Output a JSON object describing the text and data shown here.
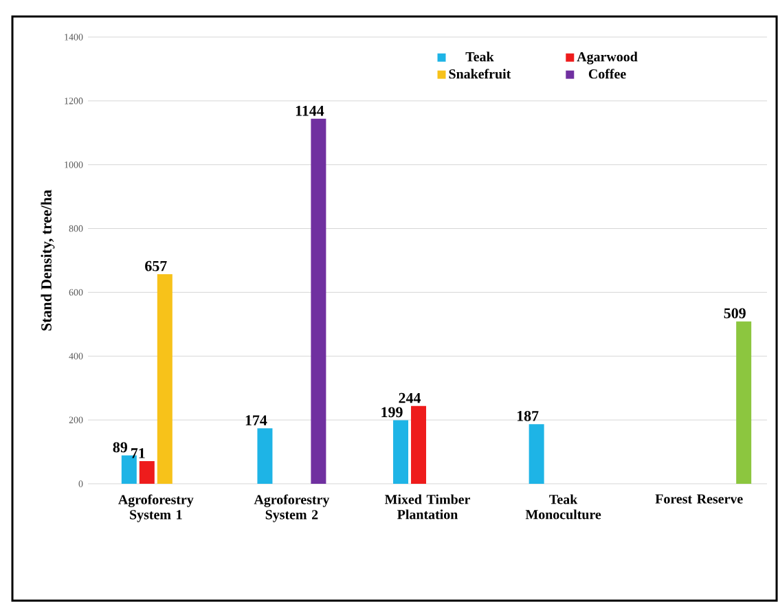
{
  "chart_data": {
    "type": "bar",
    "ylabel": "Stand Density, tree/ha",
    "categories": [
      "Agroforestry System 1",
      "Agroforestry System 2",
      "Mixed Timber Plantation",
      "Teak Monoculture",
      "Forest Reserve"
    ],
    "series": [
      {
        "name": "Teak",
        "color": "#1eb4e6",
        "values": [
          89,
          174,
          199,
          187,
          null
        ]
      },
      {
        "name": "Agarwood",
        "color": "#ee1c1c",
        "values": [
          71,
          null,
          244,
          null,
          null
        ]
      },
      {
        "name": "Snakefruit",
        "color": "#f7c21a",
        "values": [
          657,
          null,
          null,
          null,
          null
        ]
      },
      {
        "name": "Coffee",
        "color": "#7030a0",
        "values": [
          null,
          1144,
          null,
          null,
          null
        ]
      },
      {
        "color": "#8cc63f",
        "values": [
          null,
          null,
          null,
          null,
          509
        ]
      }
    ],
    "ylim": [
      0,
      1400
    ],
    "yticks": [
      0,
      200,
      400,
      600,
      800,
      1000,
      1200,
      1400
    ],
    "grid": "y",
    "legend": "top right",
    "data_labels": true
  }
}
